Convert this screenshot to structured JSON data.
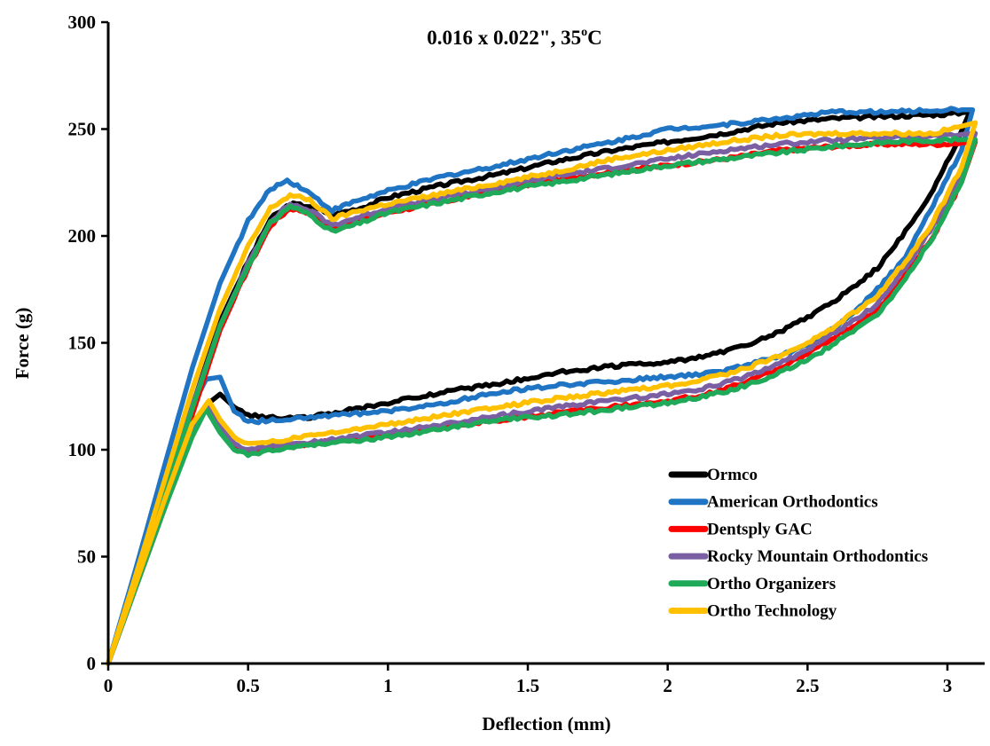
{
  "chart_data": {
    "type": "line",
    "title": "0.016 x 0.022\", 35",
    "title_sup": "o",
    "title_suffix": "C",
    "xlabel": "Deflection (mm)",
    "ylabel": "Force (g)",
    "xlim": [
      0,
      3.15
    ],
    "ylim": [
      0,
      300
    ],
    "xticks": [
      0,
      0.5,
      1,
      1.5,
      2,
      2.5,
      3
    ],
    "xtick_labels": [
      "0",
      "0.5",
      "1",
      "1.5",
      "2",
      "2.5",
      "3"
    ],
    "yticks": [
      0,
      50,
      100,
      150,
      200,
      250,
      300
    ],
    "ytick_labels": [
      "0",
      "50",
      "100",
      "150",
      "200",
      "250",
      "300"
    ],
    "grid": false,
    "legend_position": "bottom-right",
    "series": [
      {
        "name": "Ormco",
        "color": "#000000",
        "loading": [
          [
            0,
            0
          ],
          [
            0.1,
            40
          ],
          [
            0.2,
            80
          ],
          [
            0.3,
            120
          ],
          [
            0.4,
            160
          ],
          [
            0.5,
            188
          ],
          [
            0.58,
            208
          ],
          [
            0.65,
            215
          ],
          [
            0.72,
            214
          ],
          [
            0.8,
            210
          ],
          [
            0.9,
            213
          ],
          [
            1,
            218
          ],
          [
            1.2,
            224
          ],
          [
            1.4,
            229
          ],
          [
            1.6,
            235
          ],
          [
            1.8,
            240
          ],
          [
            2,
            244
          ],
          [
            2.2,
            248
          ],
          [
            2.4,
            253
          ],
          [
            2.6,
            255
          ],
          [
            2.8,
            256
          ],
          [
            3,
            257
          ],
          [
            3.08,
            258
          ]
        ],
        "unloading": [
          [
            3.08,
            258
          ],
          [
            3.02,
            240
          ],
          [
            2.95,
            222
          ],
          [
            2.85,
            202
          ],
          [
            2.75,
            185
          ],
          [
            2.6,
            170
          ],
          [
            2.5,
            162
          ],
          [
            2.4,
            155
          ],
          [
            2.3,
            150
          ],
          [
            2.2,
            146
          ],
          [
            2.1,
            143
          ],
          [
            2,
            141
          ],
          [
            1.8,
            139
          ],
          [
            1.6,
            136
          ],
          [
            1.4,
            131
          ],
          [
            1.2,
            127
          ],
          [
            1,
            122
          ],
          [
            0.8,
            117
          ],
          [
            0.7,
            115
          ],
          [
            0.6,
            115
          ],
          [
            0.5,
            116
          ],
          [
            0.45,
            120
          ],
          [
            0.4,
            126
          ],
          [
            0.35,
            121
          ],
          [
            0.3,
            108
          ],
          [
            0.2,
            74
          ],
          [
            0.1,
            38
          ],
          [
            0,
            0
          ]
        ]
      },
      {
        "name": "American Orthodontics",
        "color": "#1f74c3",
        "loading": [
          [
            0,
            0
          ],
          [
            0.1,
            45
          ],
          [
            0.2,
            92
          ],
          [
            0.3,
            138
          ],
          [
            0.4,
            178
          ],
          [
            0.5,
            207
          ],
          [
            0.58,
            222
          ],
          [
            0.64,
            226
          ],
          [
            0.7,
            222
          ],
          [
            0.8,
            212
          ],
          [
            0.9,
            217
          ],
          [
            1,
            221
          ],
          [
            1.2,
            228
          ],
          [
            1.4,
            233
          ],
          [
            1.6,
            239
          ],
          [
            1.8,
            244
          ],
          [
            2,
            250
          ],
          [
            2.2,
            252
          ],
          [
            2.4,
            255
          ],
          [
            2.6,
            258
          ],
          [
            2.8,
            258
          ],
          [
            3,
            259
          ],
          [
            3.09,
            259
          ]
        ],
        "unloading": [
          [
            3.09,
            259
          ],
          [
            3.05,
            240
          ],
          [
            2.95,
            215
          ],
          [
            2.85,
            190
          ],
          [
            2.75,
            175
          ],
          [
            2.65,
            162
          ],
          [
            2.55,
            153
          ],
          [
            2.45,
            146
          ],
          [
            2.3,
            140
          ],
          [
            2.2,
            137
          ],
          [
            2.1,
            135
          ],
          [
            2,
            134
          ],
          [
            1.8,
            132
          ],
          [
            1.6,
            130
          ],
          [
            1.4,
            127
          ],
          [
            1.2,
            122
          ],
          [
            1,
            118
          ],
          [
            0.8,
            116
          ],
          [
            0.7,
            115
          ],
          [
            0.6,
            114
          ],
          [
            0.5,
            113
          ],
          [
            0.45,
            118
          ],
          [
            0.4,
            134
          ],
          [
            0.35,
            133
          ],
          [
            0.3,
            120
          ],
          [
            0.2,
            82
          ],
          [
            0.1,
            42
          ],
          [
            0,
            0
          ]
        ]
      },
      {
        "name": "Dentsply GAC",
        "color": "#ff0000",
        "loading": [
          [
            0,
            0
          ],
          [
            0.1,
            38
          ],
          [
            0.2,
            76
          ],
          [
            0.3,
            116
          ],
          [
            0.4,
            156
          ],
          [
            0.5,
            185
          ],
          [
            0.58,
            205
          ],
          [
            0.65,
            213
          ],
          [
            0.72,
            211
          ],
          [
            0.8,
            203
          ],
          [
            0.9,
            207
          ],
          [
            1,
            211
          ],
          [
            1.2,
            216
          ],
          [
            1.4,
            222
          ],
          [
            1.6,
            226
          ],
          [
            1.8,
            230
          ],
          [
            2,
            233
          ],
          [
            2.2,
            236
          ],
          [
            2.4,
            240
          ],
          [
            2.6,
            242
          ],
          [
            2.8,
            243
          ],
          [
            3,
            243
          ],
          [
            3.1,
            244
          ]
        ],
        "unloading": [
          [
            3.1,
            244
          ],
          [
            3.05,
            225
          ],
          [
            2.95,
            200
          ],
          [
            2.85,
            182
          ],
          [
            2.75,
            165
          ],
          [
            2.6,
            153
          ],
          [
            2.5,
            145
          ],
          [
            2.4,
            138
          ],
          [
            2.3,
            133
          ],
          [
            2.2,
            128
          ],
          [
            2.1,
            125
          ],
          [
            2,
            123
          ],
          [
            1.8,
            120
          ],
          [
            1.6,
            117
          ],
          [
            1.4,
            114
          ],
          [
            1.2,
            111
          ],
          [
            1,
            107
          ],
          [
            0.8,
            104
          ],
          [
            0.7,
            102
          ],
          [
            0.6,
            101
          ],
          [
            0.5,
            99
          ],
          [
            0.45,
            102
          ],
          [
            0.4,
            110
          ],
          [
            0.36,
            121
          ],
          [
            0.3,
            108
          ],
          [
            0.2,
            72
          ],
          [
            0.1,
            36
          ],
          [
            0,
            0
          ]
        ]
      },
      {
        "name": "Rocky Mountain Orthodontics",
        "color": "#7b5fa3",
        "loading": [
          [
            0,
            0
          ],
          [
            0.1,
            40
          ],
          [
            0.2,
            80
          ],
          [
            0.3,
            120
          ],
          [
            0.4,
            158
          ],
          [
            0.5,
            187
          ],
          [
            0.58,
            207
          ],
          [
            0.65,
            215
          ],
          [
            0.72,
            212
          ],
          [
            0.8,
            205
          ],
          [
            0.9,
            209
          ],
          [
            1,
            213
          ],
          [
            1.2,
            218
          ],
          [
            1.4,
            223
          ],
          [
            1.6,
            228
          ],
          [
            1.8,
            232
          ],
          [
            2,
            236
          ],
          [
            2.2,
            240
          ],
          [
            2.4,
            243
          ],
          [
            2.6,
            245
          ],
          [
            2.8,
            246
          ],
          [
            3,
            247
          ],
          [
            3.1,
            248
          ]
        ],
        "unloading": [
          [
            3.1,
            248
          ],
          [
            3.05,
            228
          ],
          [
            2.95,
            205
          ],
          [
            2.85,
            185
          ],
          [
            2.75,
            168
          ],
          [
            2.6,
            155
          ],
          [
            2.5,
            147
          ],
          [
            2.4,
            140
          ],
          [
            2.3,
            135
          ],
          [
            2.2,
            131
          ],
          [
            2.1,
            128
          ],
          [
            2,
            126
          ],
          [
            1.8,
            123
          ],
          [
            1.6,
            120
          ],
          [
            1.4,
            116
          ],
          [
            1.2,
            112
          ],
          [
            1,
            108
          ],
          [
            0.8,
            105
          ],
          [
            0.7,
            103
          ],
          [
            0.6,
            102
          ],
          [
            0.5,
            100
          ],
          [
            0.45,
            103
          ],
          [
            0.4,
            111
          ],
          [
            0.36,
            121
          ],
          [
            0.3,
            108
          ],
          [
            0.2,
            73
          ],
          [
            0.1,
            37
          ],
          [
            0,
            0
          ]
        ]
      },
      {
        "name": "Ortho Organizers",
        "color": "#1faa5a",
        "loading": [
          [
            0,
            0
          ],
          [
            0.1,
            39
          ],
          [
            0.2,
            79
          ],
          [
            0.3,
            119
          ],
          [
            0.4,
            158
          ],
          [
            0.5,
            186
          ],
          [
            0.58,
            206
          ],
          [
            0.65,
            214
          ],
          [
            0.72,
            210
          ],
          [
            0.8,
            202
          ],
          [
            0.9,
            206
          ],
          [
            1,
            211
          ],
          [
            1.2,
            216
          ],
          [
            1.4,
            221
          ],
          [
            1.6,
            225
          ],
          [
            1.8,
            229
          ],
          [
            2,
            233
          ],
          [
            2.2,
            236
          ],
          [
            2.4,
            239
          ],
          [
            2.6,
            242
          ],
          [
            2.8,
            244
          ],
          [
            3,
            245
          ],
          [
            3.1,
            245
          ]
        ],
        "unloading": [
          [
            3.1,
            245
          ],
          [
            3.05,
            225
          ],
          [
            2.95,
            200
          ],
          [
            2.85,
            180
          ],
          [
            2.75,
            163
          ],
          [
            2.6,
            150
          ],
          [
            2.5,
            142
          ],
          [
            2.4,
            136
          ],
          [
            2.3,
            131
          ],
          [
            2.2,
            127
          ],
          [
            2.1,
            124
          ],
          [
            2,
            122
          ],
          [
            1.8,
            119
          ],
          [
            1.6,
            116
          ],
          [
            1.4,
            114
          ],
          [
            1.2,
            110
          ],
          [
            1,
            106
          ],
          [
            0.8,
            103
          ],
          [
            0.7,
            102
          ],
          [
            0.6,
            100
          ],
          [
            0.5,
            98
          ],
          [
            0.45,
            100
          ],
          [
            0.4,
            108
          ],
          [
            0.35,
            119
          ],
          [
            0.3,
            106
          ],
          [
            0.2,
            72
          ],
          [
            0.1,
            36
          ],
          [
            0,
            0
          ]
        ]
      },
      {
        "name": "Ortho Technology",
        "color": "#ffc000",
        "loading": [
          [
            0,
            0
          ],
          [
            0.1,
            42
          ],
          [
            0.2,
            85
          ],
          [
            0.3,
            128
          ],
          [
            0.4,
            166
          ],
          [
            0.5,
            195
          ],
          [
            0.58,
            213
          ],
          [
            0.65,
            219
          ],
          [
            0.72,
            217
          ],
          [
            0.8,
            208
          ],
          [
            0.9,
            212
          ],
          [
            1,
            215
          ],
          [
            1.2,
            220
          ],
          [
            1.4,
            225
          ],
          [
            1.6,
            230
          ],
          [
            1.8,
            236
          ],
          [
            2,
            240
          ],
          [
            2.2,
            244
          ],
          [
            2.4,
            247
          ],
          [
            2.6,
            248
          ],
          [
            2.8,
            248
          ],
          [
            2.95,
            248
          ],
          [
            3.1,
            253
          ]
        ],
        "unloading": [
          [
            3.1,
            253
          ],
          [
            3.05,
            232
          ],
          [
            2.95,
            207
          ],
          [
            2.85,
            188
          ],
          [
            2.75,
            172
          ],
          [
            2.6,
            158
          ],
          [
            2.5,
            150
          ],
          [
            2.4,
            144
          ],
          [
            2.3,
            139
          ],
          [
            2.2,
            135
          ],
          [
            2.1,
            132
          ],
          [
            2,
            130
          ],
          [
            1.8,
            127
          ],
          [
            1.6,
            124
          ],
          [
            1.4,
            120
          ],
          [
            1.2,
            116
          ],
          [
            1,
            112
          ],
          [
            0.8,
            108
          ],
          [
            0.7,
            106
          ],
          [
            0.6,
            104
          ],
          [
            0.5,
            103
          ],
          [
            0.45,
            106
          ],
          [
            0.4,
            114
          ],
          [
            0.36,
            123
          ],
          [
            0.3,
            112
          ],
          [
            0.2,
            76
          ],
          [
            0.1,
            38
          ],
          [
            0,
            0
          ]
        ]
      }
    ]
  }
}
